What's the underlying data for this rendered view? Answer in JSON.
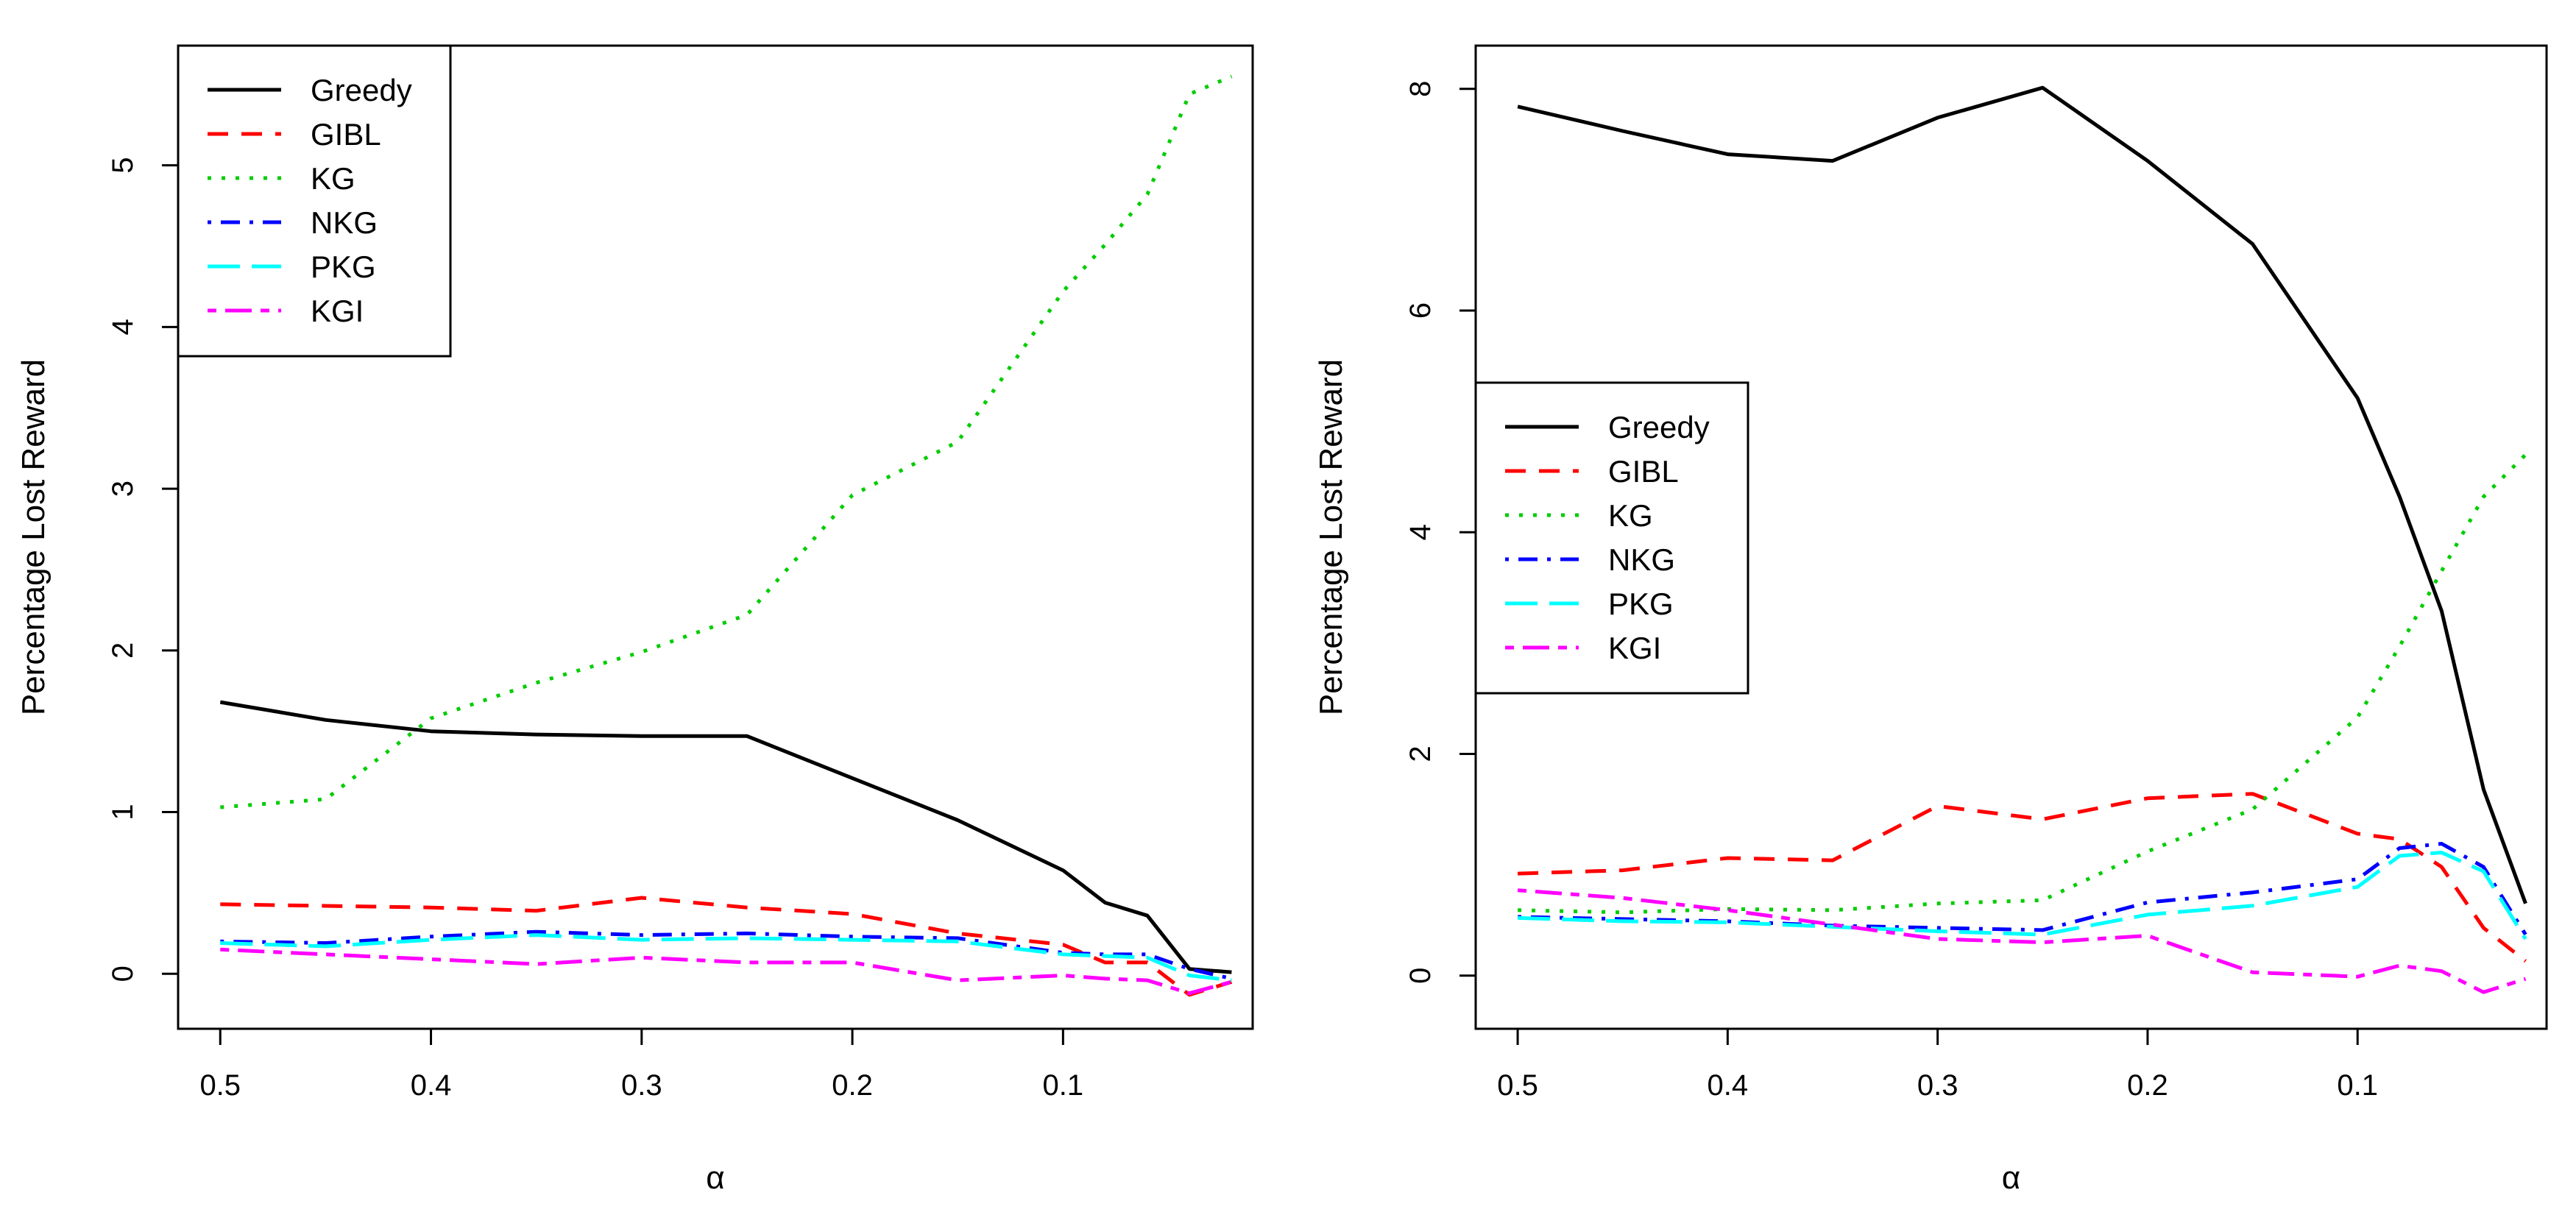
{
  "chart_data": [
    {
      "type": "line",
      "title": "",
      "xlabel": "α",
      "ylabel": "Percentage Lost Reward",
      "x_reversed": true,
      "xlim": [
        0.52,
        0.01
      ],
      "ylim": [
        -0.34,
        5.74
      ],
      "xticks": [
        0.5,
        0.4,
        0.3,
        0.2,
        0.1
      ],
      "xtick_labels": [
        "0.5",
        "0.4",
        "0.3",
        "0.2",
        "0.1"
      ],
      "yticks": [
        0,
        1,
        2,
        3,
        4,
        5
      ],
      "ytick_labels": [
        "0",
        "1",
        "2",
        "3",
        "4",
        "5"
      ],
      "legend_position": "top-left",
      "x": [
        0.5,
        0.45,
        0.4,
        0.35,
        0.3,
        0.25,
        0.2,
        0.15,
        0.1,
        0.08,
        0.06,
        0.04,
        0.02
      ],
      "series": [
        {
          "name": "Greedy",
          "color": "#000000",
          "dash": "solid",
          "values": [
            1.68,
            1.57,
            1.5,
            1.48,
            1.47,
            1.47,
            1.21,
            0.95,
            0.64,
            0.44,
            0.36,
            0.03,
            0.01
          ]
        },
        {
          "name": "GIBL",
          "color": "#ff0000",
          "dash": "dashed",
          "values": [
            0.43,
            0.42,
            0.41,
            0.39,
            0.47,
            0.41,
            0.37,
            0.25,
            0.18,
            0.07,
            0.07,
            -0.13,
            -0.05
          ]
        },
        {
          "name": "KG",
          "color": "#00cd00",
          "dash": "dotted",
          "values": [
            1.03,
            1.08,
            1.58,
            1.8,
            1.99,
            2.22,
            2.96,
            3.29,
            4.22,
            4.51,
            4.82,
            5.44,
            5.55
          ]
        },
        {
          "name": "NKG",
          "color": "#0000ff",
          "dash": "dotdash",
          "values": [
            0.2,
            0.19,
            0.23,
            0.26,
            0.24,
            0.25,
            0.23,
            0.22,
            0.13,
            0.12,
            0.12,
            0.03,
            -0.03
          ]
        },
        {
          "name": "PKG",
          "color": "#00ffff",
          "dash": "longdash",
          "values": [
            0.19,
            0.17,
            0.21,
            0.24,
            0.21,
            0.22,
            0.21,
            0.2,
            0.12,
            0.11,
            0.1,
            -0.01,
            -0.04
          ]
        },
        {
          "name": "KGI",
          "color": "#ff00ff",
          "dash": "twodash",
          "values": [
            0.15,
            0.12,
            0.09,
            0.06,
            0.1,
            0.07,
            0.07,
            -0.04,
            -0.01,
            -0.03,
            -0.04,
            -0.12,
            -0.05
          ]
        }
      ]
    },
    {
      "type": "line",
      "title": "",
      "xlabel": "α",
      "ylabel": "Percentage Lost Reward",
      "x_reversed": true,
      "xlim": [
        0.52,
        0.01
      ],
      "ylim": [
        -0.48,
        8.39
      ],
      "xticks": [
        0.5,
        0.4,
        0.3,
        0.2,
        0.1
      ],
      "xtick_labels": [
        "0.5",
        "0.4",
        "0.3",
        "0.2",
        "0.1"
      ],
      "yticks": [
        0,
        2,
        4,
        6,
        8
      ],
      "ytick_labels": [
        "0",
        "2",
        "4",
        "6",
        "8"
      ],
      "legend_position": "middle-left",
      "x": [
        0.5,
        0.45,
        0.4,
        0.35,
        0.3,
        0.25,
        0.2,
        0.15,
        0.1,
        0.08,
        0.06,
        0.04,
        0.02
      ],
      "series": [
        {
          "name": "Greedy",
          "color": "#000000",
          "dash": "solid",
          "values": [
            7.84,
            7.62,
            7.41,
            7.35,
            7.74,
            8.01,
            7.35,
            6.6,
            5.21,
            4.32,
            3.29,
            1.68,
            0.65
          ]
        },
        {
          "name": "GIBL",
          "color": "#ff0000",
          "dash": "dashed",
          "values": [
            0.92,
            0.95,
            1.06,
            1.04,
            1.53,
            1.41,
            1.6,
            1.64,
            1.28,
            1.23,
            0.98,
            0.43,
            0.13
          ]
        },
        {
          "name": "KG",
          "color": "#00cd00",
          "dash": "dotted",
          "values": [
            0.59,
            0.57,
            0.6,
            0.59,
            0.65,
            0.68,
            1.12,
            1.5,
            2.33,
            2.97,
            3.65,
            4.32,
            4.7
          ]
        },
        {
          "name": "NKG",
          "color": "#0000ff",
          "dash": "dotdash",
          "values": [
            0.53,
            0.51,
            0.49,
            0.45,
            0.43,
            0.41,
            0.66,
            0.75,
            0.87,
            1.15,
            1.19,
            0.98,
            0.37
          ]
        },
        {
          "name": "PKG",
          "color": "#00ffff",
          "dash": "longdash",
          "values": [
            0.52,
            0.49,
            0.48,
            0.44,
            0.4,
            0.37,
            0.55,
            0.63,
            0.8,
            1.08,
            1.11,
            0.94,
            0.33
          ]
        },
        {
          "name": "KGI",
          "color": "#ff00ff",
          "dash": "twodash",
          "values": [
            0.77,
            0.7,
            0.59,
            0.46,
            0.33,
            0.3,
            0.36,
            0.03,
            -0.01,
            0.09,
            0.04,
            -0.15,
            -0.03
          ]
        }
      ]
    }
  ]
}
